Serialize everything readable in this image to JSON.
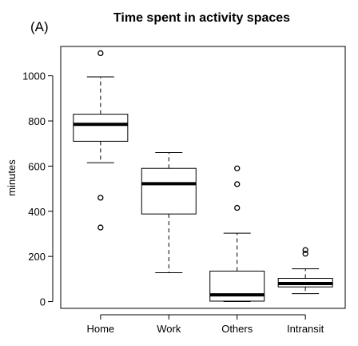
{
  "panel_label": "(A)",
  "chart_data": {
    "type": "box",
    "title": "Time spent in activity spaces",
    "xlabel": "",
    "ylabel": "minutes",
    "ylim": [
      -30,
      1130
    ],
    "yticks": [
      0,
      200,
      400,
      600,
      800,
      1000
    ],
    "grid": false,
    "categories": [
      "Home",
      "Work",
      "Others",
      "Intransit"
    ],
    "boxes": [
      {
        "category": "Home",
        "whisker_low": 615,
        "q1": 710,
        "median": 785,
        "q3": 830,
        "whisker_high": 995,
        "outliers": [
          1100,
          460,
          328
        ]
      },
      {
        "category": "Work",
        "whisker_low": 128,
        "q1": 388,
        "median": 522,
        "q3": 590,
        "whisker_high": 660,
        "outliers": []
      },
      {
        "category": "Others",
        "whisker_low": 0,
        "q1": 2,
        "median": 30,
        "q3": 135,
        "whisker_high": 303,
        "outliers": [
          590,
          520,
          415
        ]
      },
      {
        "category": "Intransit",
        "whisker_low": 35,
        "q1": 65,
        "median": 80,
        "q3": 103,
        "whisker_high": 145,
        "outliers": [
          228,
          212
        ]
      }
    ]
  }
}
